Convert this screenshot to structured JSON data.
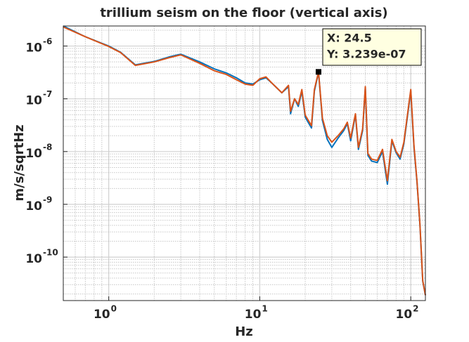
{
  "chart_data": {
    "type": "line",
    "title": "trillium seism on the floor (vertical axis)",
    "x_label": "Hz",
    "y_label": "m/s/sqrtHz",
    "xscale": "log",
    "yscale": "log",
    "grid": true,
    "minor_grid": true,
    "xlim": [
      0.5,
      125
    ],
    "ylim": [
      1.5e-11,
      2.4e-06
    ],
    "xticks": [
      {
        "value": 1,
        "label": "10",
        "exponent": "0"
      },
      {
        "value": 10,
        "label": "10",
        "exponent": "1"
      },
      {
        "value": 100,
        "label": "10",
        "exponent": "2"
      }
    ],
    "yticks": [
      {
        "value": 1e-10,
        "label": "10",
        "exponent": "-10"
      },
      {
        "value": 1e-09,
        "label": "10",
        "exponent": "-9"
      },
      {
        "value": 1e-08,
        "label": "10",
        "exponent": "-8"
      },
      {
        "value": 1e-07,
        "label": "10",
        "exponent": "-7"
      },
      {
        "value": 1e-06,
        "label": "10",
        "exponent": "-6"
      }
    ],
    "x": [
      0.5,
      0.7,
      1.0,
      1.2,
      1.5,
      2,
      2.5,
      3,
      4,
      5,
      6,
      7,
      8,
      9,
      10,
      11,
      12,
      13,
      14,
      15.5,
      16,
      17,
      18,
      19,
      20,
      22,
      23,
      24.5,
      26,
      28,
      30,
      33,
      36,
      38,
      40,
      43,
      45,
      48,
      50,
      52,
      55,
      60,
      65,
      70,
      75,
      80,
      85,
      90,
      100,
      105,
      110,
      115,
      120,
      125
    ],
    "series": [
      {
        "color": "#0072bd",
        "values": [
          2.4e-06,
          1.5e-06,
          1e-06,
          7.6e-07,
          4.4e-07,
          5.1e-07,
          6.2e-07,
          7e-07,
          5e-07,
          3.7e-07,
          3.1e-07,
          2.5e-07,
          2e-07,
          1.9e-07,
          2.3e-07,
          2.5e-07,
          2e-07,
          1.6e-07,
          1.3e-07,
          1.7e-07,
          5.2e-08,
          1e-07,
          7.2e-08,
          1.4e-07,
          4.5e-08,
          2.8e-08,
          1.4e-07,
          3.2e-07,
          3.9e-08,
          1.7e-08,
          1.2e-08,
          1.8e-08,
          2.5e-08,
          3.4e-08,
          1.6e-08,
          5e-08,
          1.1e-08,
          2.5e-08,
          1.6e-07,
          8.5e-09,
          6.6e-09,
          6.2e-09,
          1e-08,
          2.4e-09,
          1.6e-08,
          9.5e-09,
          7.2e-09,
          1.4e-08,
          1.4e-07,
          1.2e-08,
          2.6e-09,
          4.1e-10,
          3.5e-11,
          1.9e-11
        ]
      },
      {
        "color": "#d95319",
        "values": [
          2.3e-06,
          1.5e-06,
          9.8e-07,
          7.5e-07,
          4.3e-07,
          5e-07,
          6e-07,
          6.8e-07,
          4.7e-07,
          3.4e-07,
          2.9e-07,
          2.3e-07,
          1.9e-07,
          1.8e-07,
          2.4e-07,
          2.6e-07,
          2e-07,
          1.6e-07,
          1.3e-07,
          1.8e-07,
          5.8e-08,
          1e-07,
          7.8e-08,
          1.5e-07,
          4.9e-08,
          3.1e-08,
          1.5e-07,
          3.239e-07,
          4.3e-08,
          2e-08,
          1.5e-08,
          2e-08,
          2.7e-08,
          3.6e-08,
          1.8e-08,
          5.2e-08,
          1.2e-08,
          2.7e-08,
          1.7e-07,
          9.2e-09,
          7.2e-09,
          6.8e-09,
          1.1e-08,
          2.8e-09,
          1.7e-08,
          1e-08,
          7.8e-09,
          1.5e-08,
          1.5e-07,
          1.3e-08,
          2.7e-09,
          4.2e-10,
          3.6e-11,
          1.9e-11
        ]
      }
    ],
    "annotations": [
      {
        "x": 24.5,
        "y": 3.239e-07,
        "label_x": "X: 24.5",
        "label_y": "Y: 3.239e-07"
      }
    ]
  }
}
